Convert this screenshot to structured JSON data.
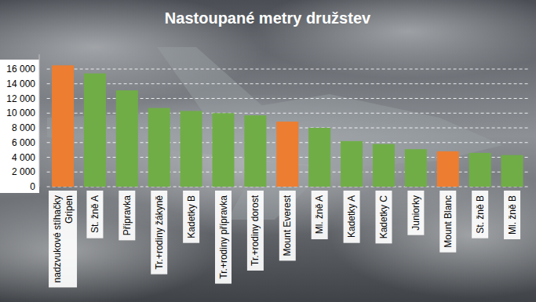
{
  "chart_data": {
    "type": "bar",
    "title": "Nastoupané metry družstev",
    "categories": [
      "nadzvukové stíhačky Gripen",
      "St. žně A",
      "Přípravka",
      "Tr.+rodiny žákyně",
      "Kadetky B",
      "Tr.+rodiny přípravka",
      "Tr.+rodiny dorost",
      "Mount Everest",
      "Ml. žně A",
      "Kadetky A",
      "Kadetky C",
      "Juniorky",
      "Mount Blanc",
      "St. žně B",
      "Ml. žně B"
    ],
    "values": [
      16500,
      15400,
      13100,
      10700,
      10300,
      10000,
      9700,
      8848,
      8000,
      6200,
      5800,
      5100,
      4808,
      4600,
      4300
    ],
    "colors": [
      "#ed7d31",
      "#70ad47",
      "#70ad47",
      "#70ad47",
      "#70ad47",
      "#70ad47",
      "#70ad47",
      "#ed7d31",
      "#70ad47",
      "#70ad47",
      "#70ad47",
      "#70ad47",
      "#ed7d31",
      "#70ad47",
      "#70ad47"
    ],
    "ylim": [
      0,
      18000
    ],
    "yticks": [
      0,
      {
        "value": 2000,
        "label": "2 000"
      },
      {
        "value": 4000,
        "label": "4 000"
      },
      {
        "value": 6000,
        "label": "6 000"
      },
      {
        "value": 8000,
        "label": "8 000"
      },
      {
        "value": 10000,
        "label": "10 000"
      },
      {
        "value": 12000,
        "label": "12 000"
      },
      {
        "value": 14000,
        "label": "14 000"
      },
      {
        "value": 16000,
        "label": "16 000"
      }
    ],
    "grid": true
  }
}
